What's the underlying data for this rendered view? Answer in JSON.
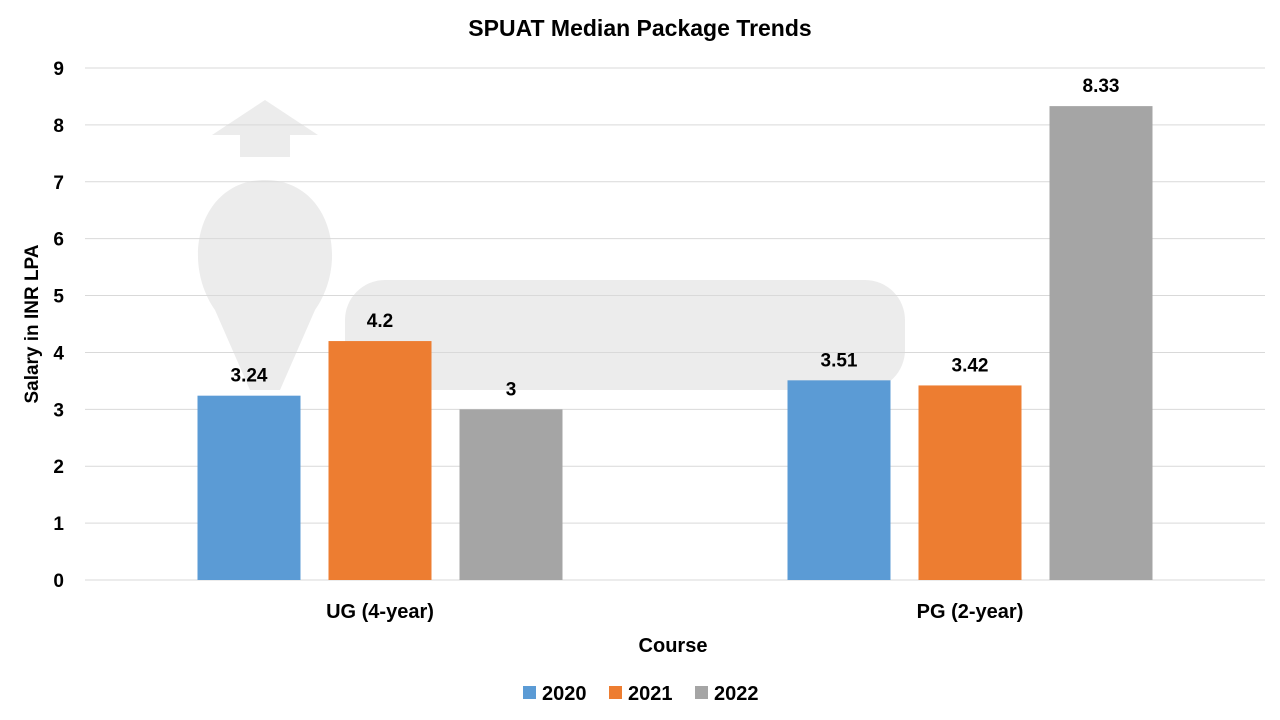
{
  "chart_data": {
    "type": "bar",
    "title": "SPUAT Median Package Trends",
    "xlabel": "Course",
    "ylabel": "Salary in INR LPA",
    "categories": [
      "UG (4-year)",
      "PG (2-year)"
    ],
    "series": [
      {
        "name": "2020",
        "values": [
          3.24,
          3.51
        ],
        "color": "#5B9BD5"
      },
      {
        "name": "2021",
        "values": [
          4.2,
          3.42
        ],
        "color": "#ED7D31"
      },
      {
        "name": "2022",
        "values": [
          3,
          8.33
        ],
        "color": "#A5A5A5"
      }
    ],
    "data_labels": [
      [
        "3.24",
        "3.51"
      ],
      [
        "4.2",
        "3.42"
      ],
      [
        "3",
        "8.33"
      ]
    ],
    "ylim": [
      0,
      9
    ],
    "yticks": [
      "0",
      "1",
      "2",
      "3",
      "4",
      "5",
      "6",
      "7",
      "8",
      "9"
    ],
    "grid": true,
    "legend": "bottom"
  },
  "watermark": "shiksha"
}
